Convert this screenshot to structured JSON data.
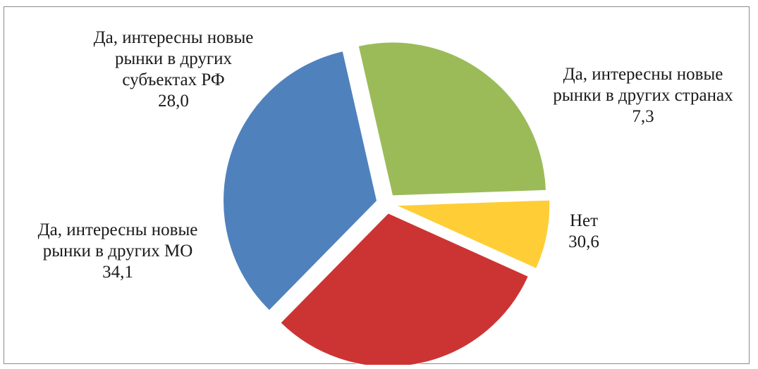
{
  "chart_data": {
    "type": "pie",
    "exploded": true,
    "start_angle_deg": 88,
    "direction": "clockwise",
    "categories": [
      "Да, интересны новые рынки в других странах",
      "Нет",
      "Да, интересны новые рынки в других МО",
      "Да, интересны новые рынки в других субъектах РФ"
    ],
    "values": [
      7.3,
      30.6,
      34.1,
      28.0
    ],
    "value_labels": [
      "7,3",
      "30,6",
      "34,1",
      "28,0"
    ],
    "colors": [
      "#FFCD35",
      "#CC3433",
      "#4F81BD",
      "#9BBB59"
    ],
    "labels": [
      {
        "lines": [
          "Да, интересны новые",
          "рынки в других странах"
        ],
        "value": "7,3"
      },
      {
        "lines": [
          "Нет"
        ],
        "value": "30,6"
      },
      {
        "lines": [
          "Да, интересны новые",
          "рынки в других МО"
        ],
        "value": "34,1"
      },
      {
        "lines": [
          "Да, интересны новые",
          "рынки в других",
          "субъектах РФ"
        ],
        "value": "28,0"
      }
    ]
  }
}
